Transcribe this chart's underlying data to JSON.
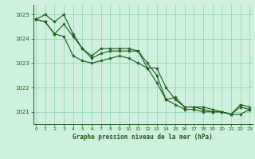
{
  "bg_color": "#cff0dd",
  "grid_color": "#99ddbb",
  "line_color": "#1a5c1a",
  "marker_color": "#1a5c1a",
  "xlabel": "Graphe pression niveau de la mer (hPa)",
  "ylim": [
    1020.5,
    1025.4
  ],
  "xlim": [
    -0.3,
    23.3
  ],
  "yticks": [
    1021,
    1022,
    1023,
    1024,
    1025
  ],
  "xticks": [
    0,
    1,
    2,
    3,
    4,
    5,
    6,
    7,
    8,
    9,
    10,
    11,
    12,
    13,
    14,
    15,
    16,
    17,
    18,
    19,
    20,
    21,
    22,
    23
  ],
  "series": [
    [
      1024.8,
      1025.0,
      1024.7,
      1025.0,
      1024.2,
      1023.6,
      1023.2,
      1023.4,
      1023.5,
      1023.5,
      1023.5,
      1023.5,
      1022.8,
      1022.8,
      1022.0,
      1021.5,
      1021.2,
      1021.2,
      1021.2,
      1021.1,
      1021.0,
      1020.9,
      1021.2,
      1021.1
    ],
    [
      1024.8,
      1024.7,
      1024.2,
      1024.1,
      1023.3,
      1023.1,
      1023.0,
      1023.1,
      1023.2,
      1023.3,
      1023.2,
      1023.0,
      1022.8,
      1022.2,
      1021.5,
      1021.3,
      1021.1,
      1021.1,
      1021.0,
      1021.0,
      1021.0,
      1020.9,
      1020.9,
      1021.1
    ],
    [
      1024.8,
      1024.7,
      1024.2,
      1024.6,
      1024.1,
      1023.6,
      1023.3,
      1023.6,
      1023.6,
      1023.6,
      1023.6,
      1023.5,
      1023.0,
      1022.5,
      1021.5,
      1021.6,
      1021.2,
      1021.2,
      1021.1,
      1021.0,
      1021.0,
      1020.9,
      1021.3,
      1021.2
    ]
  ]
}
